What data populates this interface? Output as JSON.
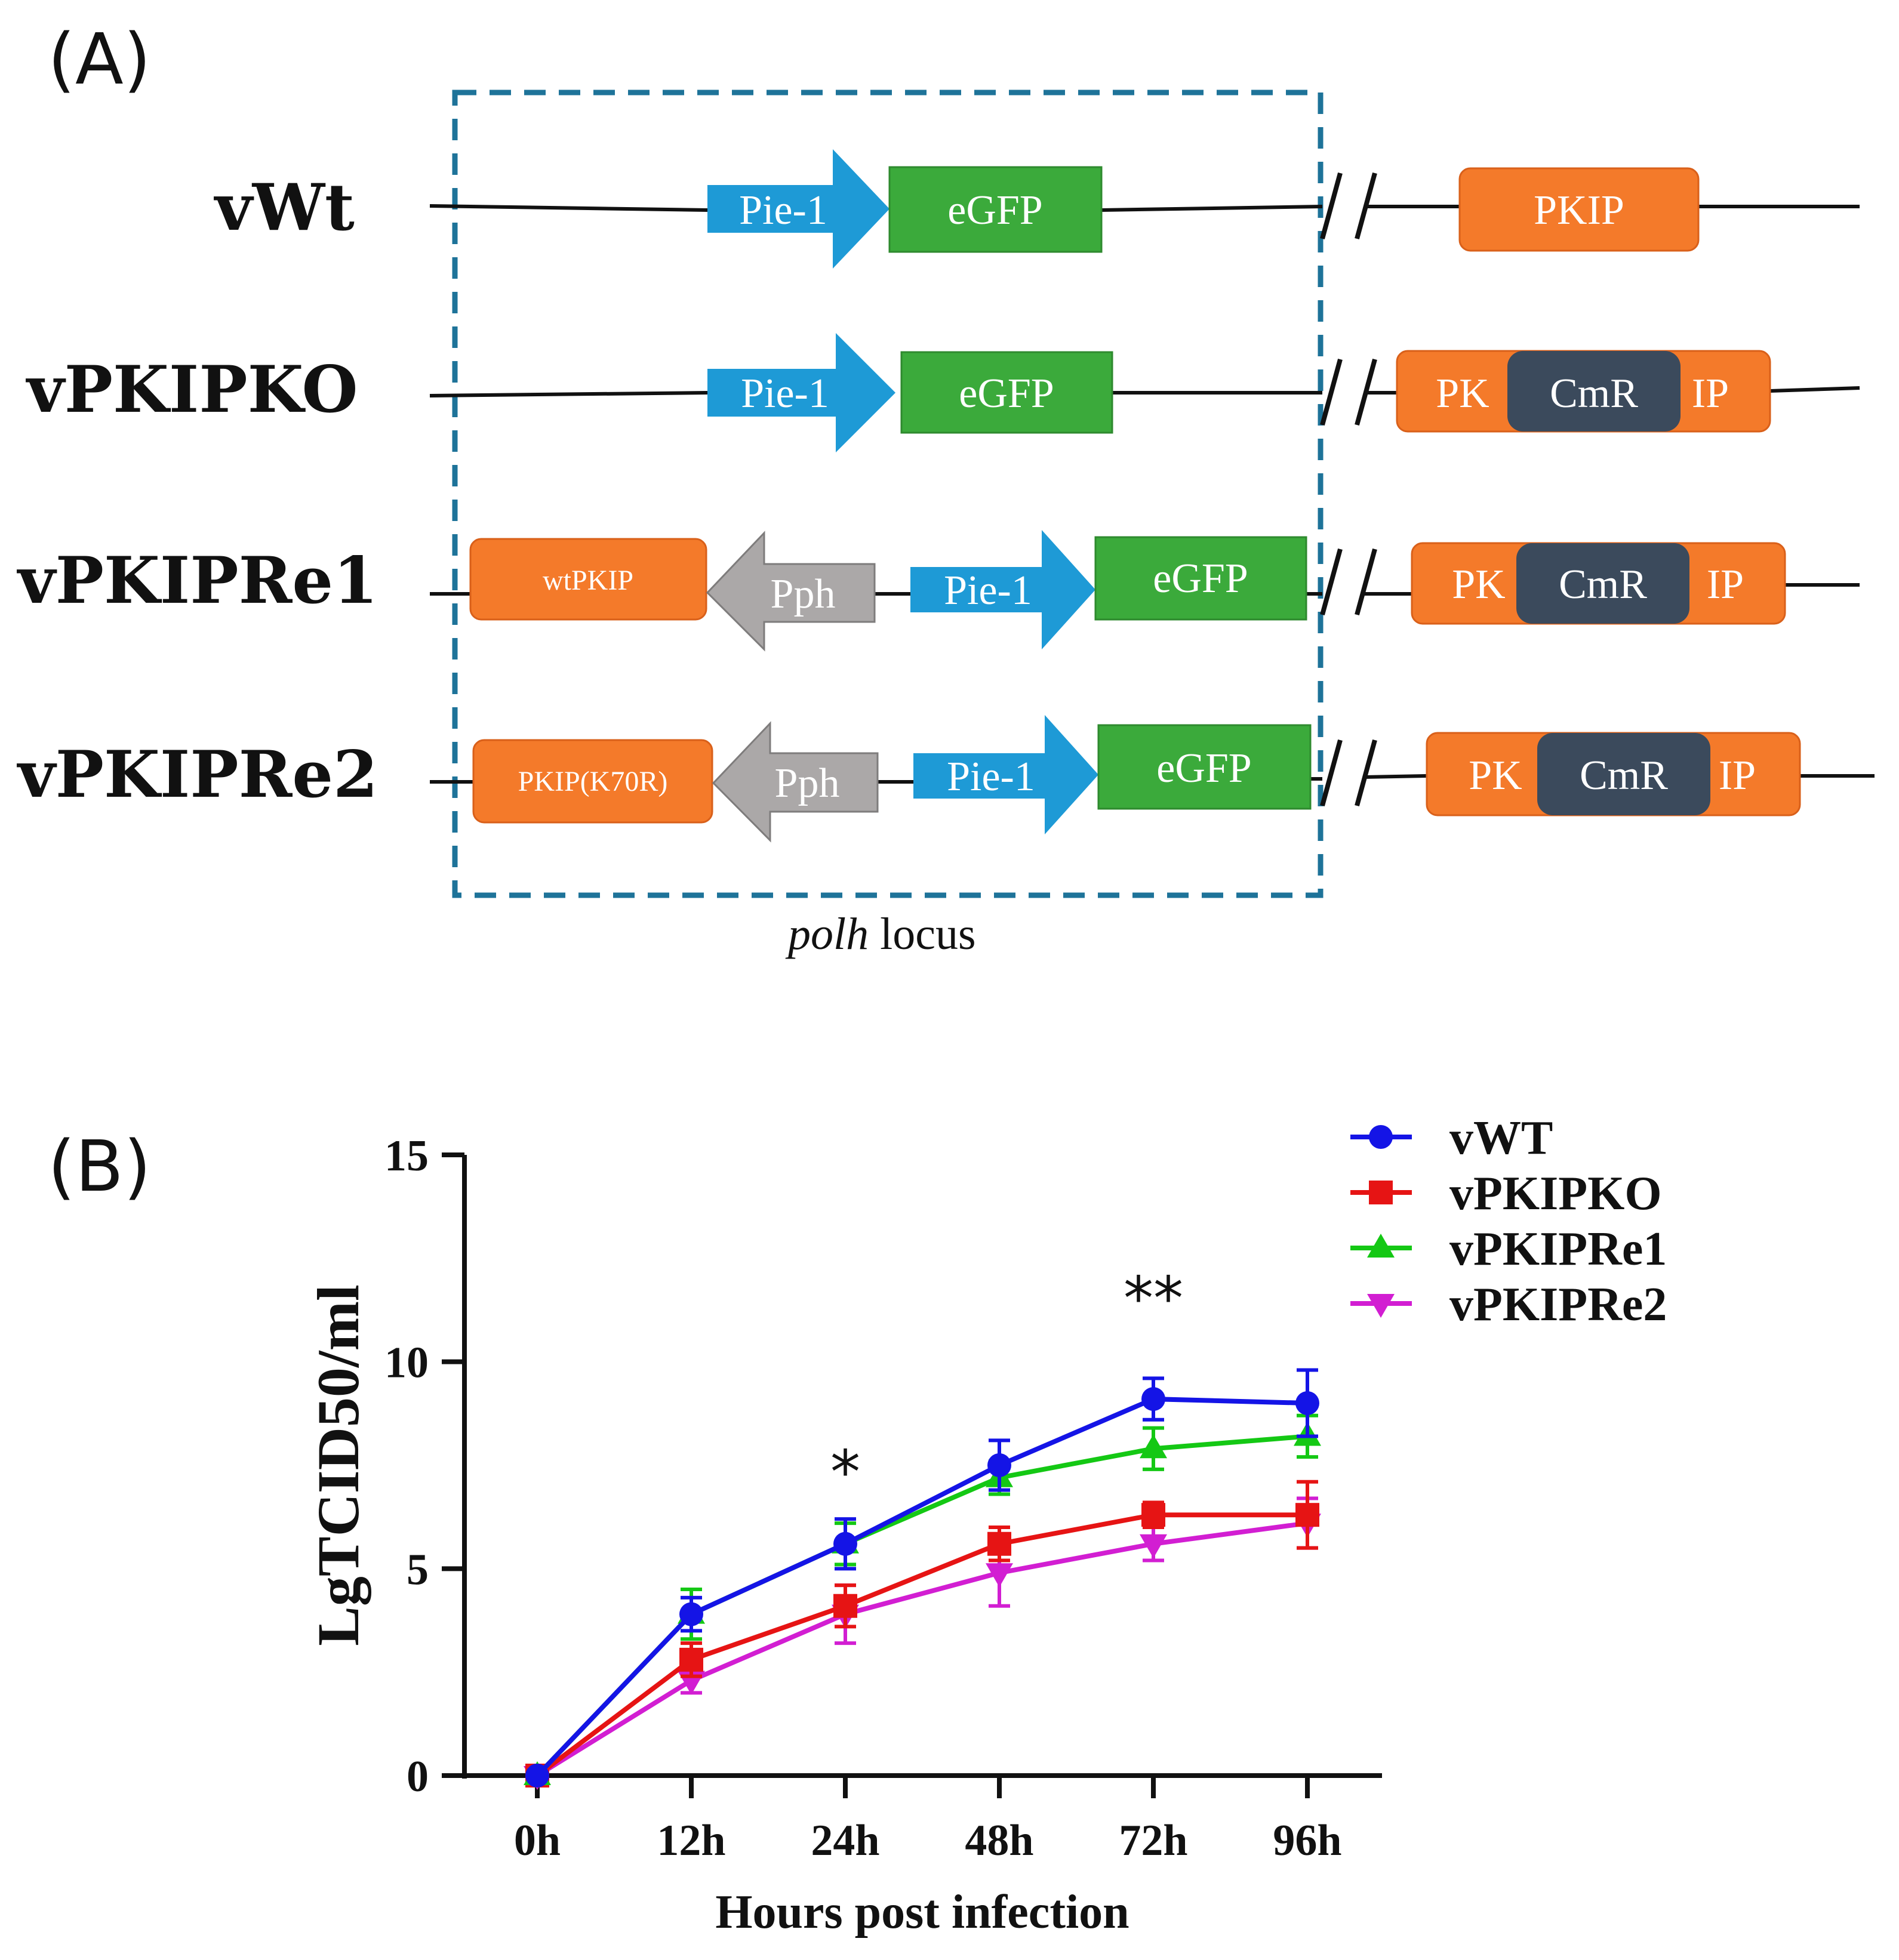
{
  "panel_a": {
    "label": "(A)",
    "caption_italic": "polh",
    "caption_rest": " locus",
    "colors": {
      "orange": "#F47A2A",
      "blue": "#1E9AD6",
      "green": "#3BAA3B",
      "grey": "#ABA8A8",
      "dark": "#3B4A5C",
      "dashed": "#1E7399"
    },
    "rows": [
      {
        "name": "vWt",
        "promoter": "Pie-1",
        "reporter": "eGFP",
        "locus_left": "PKIP",
        "locus_insert": "",
        "locus_right": ""
      },
      {
        "name": "vPKIPKO",
        "promoter": "Pie-1",
        "reporter": "eGFP",
        "locus_left": "PK",
        "locus_insert": "CmR",
        "locus_right": "IP"
      },
      {
        "name": "vPKIPRe1",
        "rescue": "wtPKIP",
        "rescue_promoter": "Pph",
        "promoter": "Pie-1",
        "reporter": "eGFP",
        "locus_left": "PK",
        "locus_insert": "CmR",
        "locus_right": "IP"
      },
      {
        "name": "vPKIPRe2",
        "rescue": "PKIP(K70R)",
        "rescue_promoter": "Pph",
        "promoter": "Pie-1",
        "reporter": "eGFP",
        "locus_left": "PK",
        "locus_insert": "CmR",
        "locus_right": "IP"
      }
    ]
  },
  "panel_b": {
    "label": "(B)",
    "significance": [
      {
        "category": "24h",
        "mark": "*",
        "above": 7.7
      },
      {
        "category": "72h",
        "mark": "**",
        "above": 11.9
      }
    ]
  },
  "chart_data": {
    "type": "line",
    "title": "",
    "xlabel": "Hours post infection",
    "ylabel": "LgTCID50/ml",
    "categories": [
      "0h",
      "12h",
      "24h",
      "48h",
      "72h",
      "96h"
    ],
    "ylim": [
      0,
      15
    ],
    "yticks": [
      0,
      5,
      10,
      15
    ],
    "legend_position": "top-right",
    "series": [
      {
        "name": "vWT",
        "color": "#1414E6",
        "marker": "circle",
        "values": [
          0,
          3.9,
          5.6,
          7.5,
          9.1,
          9.0
        ],
        "errors": [
          0.05,
          0.4,
          0.6,
          0.6,
          0.5,
          0.8
        ]
      },
      {
        "name": "vPKIPKO",
        "color": "#E61414",
        "marker": "square",
        "values": [
          0,
          2.8,
          4.1,
          5.6,
          6.3,
          6.3
        ],
        "errors": [
          0.05,
          0.4,
          0.5,
          0.4,
          0.3,
          0.8
        ]
      },
      {
        "name": "vPKIPRe1",
        "color": "#14C814",
        "marker": "triangle-up",
        "values": [
          0,
          3.9,
          5.6,
          7.2,
          7.9,
          8.2
        ],
        "errors": [
          0.05,
          0.6,
          0.5,
          0.4,
          0.5,
          0.5
        ]
      },
      {
        "name": "vPKIPRe2",
        "color": "#D21ED2",
        "marker": "triangle-down",
        "values": [
          0,
          2.3,
          3.9,
          4.9,
          5.6,
          6.1
        ],
        "errors": [
          0.05,
          0.3,
          0.7,
          0.8,
          0.4,
          0.6
        ]
      }
    ]
  }
}
